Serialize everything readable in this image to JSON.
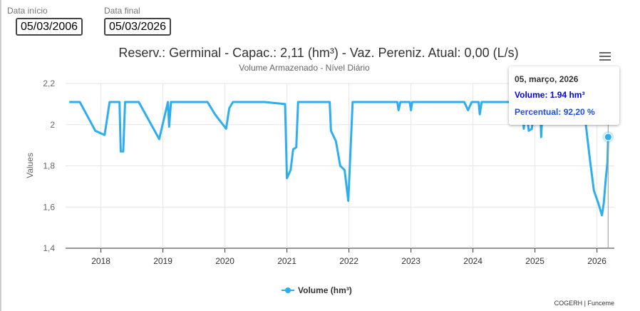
{
  "filters": {
    "start_label": "Data início",
    "start_value": "05/03/2006",
    "end_label": "Data final",
    "end_value": "05/03/2026"
  },
  "tooltip": {
    "date": "05, março, 2026",
    "volume": "Volume: 1.94 hm³",
    "percent": "Percentual: 92,20 %"
  },
  "credits": "COGERH | Funceme",
  "colors": {
    "series": "#2eaef0",
    "tooltip_text": "#0000ee"
  },
  "chart_data": {
    "type": "line",
    "title": "Reserv.: Germinal - Capac.: 2,11 (hm³) - Vaz. Pereniz. Atual: 0,00 (L/s)",
    "subtitle": "Volume Armazenado - Nível Diário",
    "xlabel": "",
    "ylabel": "Values",
    "xlim": [
      2017.43,
      2026.28
    ],
    "ylim": [
      1.4,
      2.2
    ],
    "y_ticks": [
      "1,4",
      "1,6",
      "1,8",
      "2",
      "2,2"
    ],
    "y_tick_values": [
      1.4,
      1.6,
      1.8,
      2.0,
      2.2
    ],
    "x_ticks": [
      "2018",
      "2019",
      "2020",
      "2021",
      "2022",
      "2023",
      "2024",
      "2025",
      "2026"
    ],
    "grid": true,
    "legend": {
      "position": "bottom-center",
      "entries": [
        "Volume (hm³)"
      ]
    },
    "series": [
      {
        "name": "Volume (hm³)",
        "x": [
          2017.49,
          2017.66,
          2017.91,
          2018.06,
          2018.14,
          2018.3,
          2018.32,
          2018.36,
          2018.39,
          2018.61,
          2018.94,
          2019.08,
          2019.1,
          2019.13,
          2019.72,
          2019.84,
          2020.02,
          2020.07,
          2020.13,
          2020.64,
          2020.97,
          2021.0,
          2021.06,
          2021.1,
          2021.15,
          2021.18,
          2021.69,
          2021.71,
          2021.79,
          2021.86,
          2021.93,
          2021.99,
          2022.06,
          2022.78,
          2022.8,
          2022.83,
          2022.98,
          2023.0,
          2023.02,
          2023.86,
          2023.92,
          2023.98,
          2024.09,
          2024.11,
          2024.14,
          2024.78,
          2024.82,
          2024.85,
          2024.9,
          2024.95,
          2024.99,
          2025.08,
          2025.1,
          2025.13,
          2025.76,
          2025.82,
          2025.89,
          2025.95,
          2026.02,
          2026.08,
          2026.11,
          2026.14,
          2026.17,
          2026.18
        ],
        "values": [
          2.11,
          2.11,
          1.97,
          1.95,
          2.11,
          2.11,
          1.87,
          1.87,
          2.11,
          2.11,
          1.93,
          2.11,
          1.99,
          2.11,
          2.11,
          2.05,
          1.98,
          2.08,
          2.11,
          2.11,
          2.1,
          1.74,
          1.78,
          1.88,
          1.89,
          2.11,
          2.11,
          1.97,
          1.92,
          1.8,
          1.78,
          1.63,
          2.11,
          2.11,
          2.07,
          2.11,
          2.11,
          2.07,
          2.11,
          2.11,
          2.07,
          2.11,
          2.11,
          2.05,
          2.11,
          2.11,
          1.98,
          2.11,
          1.97,
          1.98,
          2.11,
          2.11,
          1.94,
          2.11,
          2.11,
          2.0,
          1.82,
          1.68,
          1.62,
          1.56,
          1.62,
          1.73,
          1.82,
          1.94
        ]
      }
    ],
    "highlight": {
      "x": 2026.18,
      "value": 1.94
    }
  }
}
